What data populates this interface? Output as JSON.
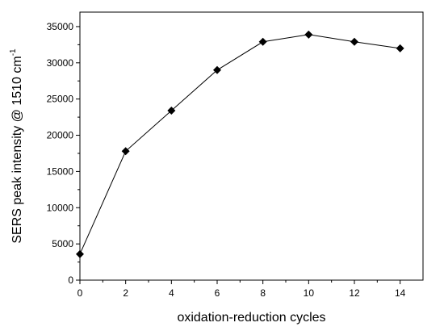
{
  "chart_data": {
    "type": "line",
    "title": "",
    "xlabel": "oxidation-reduction cycles",
    "ylabel": "SERS peak intensity @ 1510 cm",
    "ylabel_superscript": "-1",
    "xlim": [
      0,
      15
    ],
    "ylim": [
      0,
      37000
    ],
    "x_ticks": [
      0,
      2,
      4,
      6,
      8,
      10,
      12,
      14
    ],
    "y_ticks": [
      0,
      5000,
      10000,
      15000,
      20000,
      25000,
      30000,
      35000
    ],
    "x_tick_labels": [
      "0",
      "2",
      "4",
      "6",
      "8",
      "10",
      "12",
      "14"
    ],
    "y_tick_labels": [
      "0",
      "5000",
      "10000",
      "15000",
      "20000",
      "25000",
      "30000",
      "35000"
    ],
    "grid": false,
    "marker": "diamond",
    "series": [
      {
        "x": [
          0,
          2,
          4,
          6,
          8,
          10,
          12,
          14
        ],
        "values": [
          3600,
          17800,
          23400,
          29000,
          32900,
          33900,
          32900,
          32000
        ]
      }
    ]
  }
}
